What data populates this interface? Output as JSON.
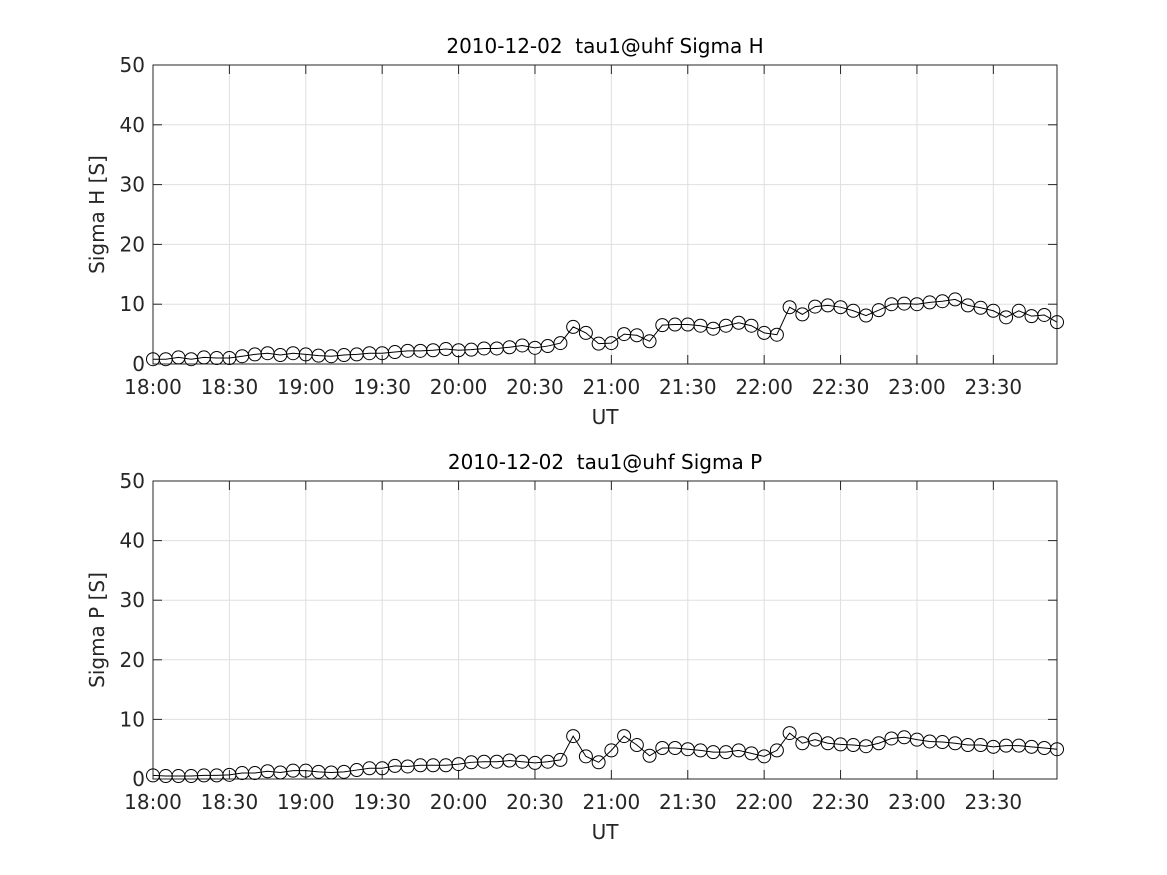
{
  "chart_data": [
    {
      "type": "line",
      "title": "2010-12-02  tau1@uhf Sigma H",
      "xlabel": "UT",
      "ylabel": "Sigma H [S]",
      "x": [
        "18:00",
        "18:05",
        "18:10",
        "18:15",
        "18:20",
        "18:25",
        "18:30",
        "18:35",
        "18:40",
        "18:45",
        "18:50",
        "18:55",
        "19:00",
        "19:05",
        "19:10",
        "19:15",
        "19:20",
        "19:25",
        "19:30",
        "19:35",
        "19:40",
        "19:45",
        "19:50",
        "19:55",
        "20:00",
        "20:05",
        "20:10",
        "20:15",
        "20:20",
        "20:25",
        "20:30",
        "20:35",
        "20:40",
        "20:45",
        "20:50",
        "20:55",
        "21:00",
        "21:05",
        "21:10",
        "21:15",
        "21:20",
        "21:25",
        "21:30",
        "21:35",
        "21:40",
        "21:45",
        "21:50",
        "21:55",
        "22:00",
        "22:05",
        "22:10",
        "22:15",
        "22:20",
        "22:25",
        "22:30",
        "22:35",
        "22:40",
        "22:45",
        "22:50",
        "22:55",
        "23:00",
        "23:05",
        "23:10",
        "23:15",
        "23:20",
        "23:25",
        "23:30",
        "23:35",
        "23:40",
        "23:45",
        "23:50",
        "23:55"
      ],
      "values": [
        0.8,
        0.8,
        1.1,
        0.8,
        1.1,
        1.0,
        1.0,
        1.3,
        1.6,
        1.8,
        1.5,
        1.8,
        1.6,
        1.4,
        1.3,
        1.5,
        1.6,
        1.8,
        1.8,
        2.0,
        2.2,
        2.2,
        2.3,
        2.5,
        2.3,
        2.4,
        2.6,
        2.6,
        2.8,
        3.1,
        2.7,
        3.0,
        3.5,
        6.2,
        5.2,
        3.4,
        3.5,
        5.0,
        4.8,
        3.8,
        6.5,
        6.6,
        6.6,
        6.4,
        5.9,
        6.4,
        6.9,
        6.4,
        5.2,
        4.9,
        9.5,
        8.3,
        9.6,
        9.8,
        9.5,
        8.9,
        8.1,
        9.0,
        10.0,
        10.1,
        10.0,
        10.3,
        10.5,
        10.8,
        9.8,
        9.4,
        8.9,
        7.8,
        8.9,
        8.0,
        8.2,
        7.0
      ],
      "color": "#000000",
      "marker": "circle",
      "xlim": [
        "18:00",
        "23:55"
      ],
      "xticks": [
        "18:00",
        "18:30",
        "19:00",
        "19:30",
        "20:00",
        "20:30",
        "21:00",
        "21:30",
        "22:00",
        "22:30",
        "23:00",
        "23:30"
      ],
      "ylim": [
        0,
        50
      ],
      "yticks": [
        0,
        10,
        20,
        30,
        40,
        50
      ],
      "grid": true
    },
    {
      "type": "line",
      "title": "2010-12-02  tau1@uhf Sigma P",
      "xlabel": "UT",
      "ylabel": "Sigma P [S]",
      "x": [
        "18:00",
        "18:05",
        "18:10",
        "18:15",
        "18:20",
        "18:25",
        "18:30",
        "18:35",
        "18:40",
        "18:45",
        "18:50",
        "18:55",
        "19:00",
        "19:05",
        "19:10",
        "19:15",
        "19:20",
        "19:25",
        "19:30",
        "19:35",
        "19:40",
        "19:45",
        "19:50",
        "19:55",
        "20:00",
        "20:05",
        "20:10",
        "20:15",
        "20:20",
        "20:25",
        "20:30",
        "20:35",
        "20:40",
        "20:45",
        "20:50",
        "20:55",
        "21:00",
        "21:05",
        "21:10",
        "21:15",
        "21:20",
        "21:25",
        "21:30",
        "21:35",
        "21:40",
        "21:45",
        "21:50",
        "21:55",
        "22:00",
        "22:05",
        "22:10",
        "22:15",
        "22:20",
        "22:25",
        "22:30",
        "22:35",
        "22:40",
        "22:45",
        "22:50",
        "22:55",
        "23:00",
        "23:05",
        "23:10",
        "23:15",
        "23:20",
        "23:25",
        "23:30",
        "23:35",
        "23:40",
        "23:45",
        "23:50",
        "23:55"
      ],
      "values": [
        0.6,
        0.5,
        0.5,
        0.5,
        0.6,
        0.6,
        0.7,
        1.0,
        1.0,
        1.3,
        1.1,
        1.4,
        1.4,
        1.2,
        1.1,
        1.2,
        1.5,
        1.8,
        1.8,
        2.2,
        2.1,
        2.3,
        2.3,
        2.3,
        2.5,
        2.8,
        2.9,
        2.9,
        3.1,
        2.9,
        2.7,
        2.9,
        3.2,
        7.2,
        3.8,
        2.8,
        4.8,
        7.2,
        5.7,
        3.9,
        5.2,
        5.2,
        5.0,
        4.8,
        4.5,
        4.5,
        4.8,
        4.3,
        3.8,
        4.8,
        7.7,
        6.0,
        6.6,
        6.0,
        5.8,
        5.7,
        5.5,
        6.0,
        6.8,
        7.0,
        6.6,
        6.3,
        6.2,
        6.0,
        5.7,
        5.7,
        5.4,
        5.6,
        5.6,
        5.4,
        5.2,
        5.0
      ],
      "color": "#000000",
      "marker": "circle",
      "xlim": [
        "18:00",
        "23:55"
      ],
      "xticks": [
        "18:00",
        "18:30",
        "19:00",
        "19:30",
        "20:00",
        "20:30",
        "21:00",
        "21:30",
        "22:00",
        "22:30",
        "23:00",
        "23:30"
      ],
      "ylim": [
        0,
        50
      ],
      "yticks": [
        0,
        10,
        20,
        30,
        40,
        50
      ],
      "grid": true
    }
  ]
}
